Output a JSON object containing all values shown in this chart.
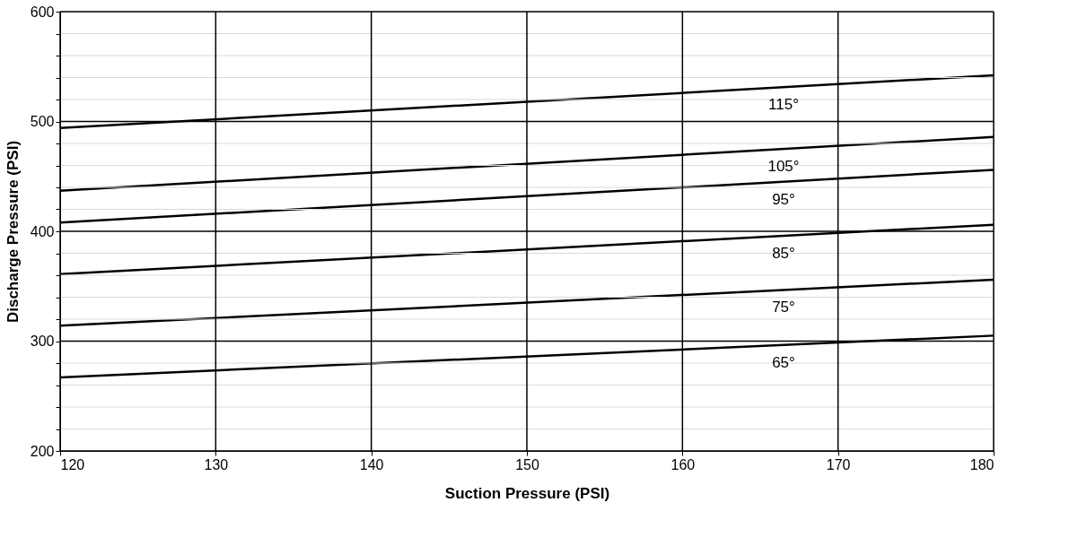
{
  "chart_data": {
    "type": "line",
    "xlabel": "Suction Pressure (PSI)",
    "ylabel": "Discharge Pressure (PSI)",
    "xlim": [
      120,
      180
    ],
    "ylim": [
      200,
      600
    ],
    "xticks": [
      120,
      130,
      140,
      150,
      160,
      170,
      180
    ],
    "yticks": [
      200,
      {
        "value": 220,
        "label": null
      },
      {
        "value": 240,
        "label": null
      },
      {
        "value": 260,
        "label": null
      },
      {
        "value": 280,
        "label": null
      },
      300,
      {
        "value": 320,
        "label": null
      },
      {
        "value": 340,
        "label": null
      },
      {
        "value": 360,
        "label": null
      },
      {
        "value": 380,
        "label": null
      },
      400,
      {
        "value": 420,
        "label": null
      },
      {
        "value": 440,
        "label": null
      },
      {
        "value": 460,
        "label": null
      },
      {
        "value": 480,
        "label": null
      },
      500,
      {
        "value": 520,
        "label": null
      },
      {
        "value": 540,
        "label": null
      },
      {
        "value": 560,
        "label": null
      },
      {
        "value": 580,
        "label": null
      },
      600
    ],
    "grid": true,
    "line_style": "solid",
    "marker": "none",
    "legend": false,
    "x": [
      120,
      180
    ],
    "series": [
      {
        "color": "#000000",
        "values": [
          494,
          542
        ]
      },
      {
        "color": "#000000",
        "values": [
          437,
          486
        ]
      },
      {
        "color": "#000000",
        "values": [
          408,
          456
        ]
      },
      {
        "color": "#000000",
        "values": [
          361,
          406
        ]
      },
      {
        "color": "#000000",
        "values": [
          314,
          356
        ]
      },
      {
        "color": "#000000",
        "values": [
          267,
          305
        ]
      }
    ],
    "annotations": [
      "115°",
      "105°",
      "95°",
      "85°",
      "75°",
      "65°"
    ]
  }
}
